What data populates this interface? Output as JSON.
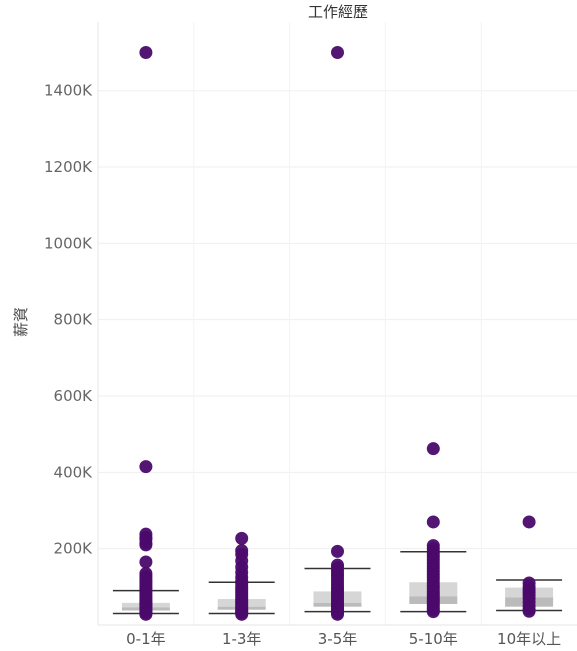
{
  "chart_data": {
    "type": "scatter",
    "title": "工作經歷",
    "xlabel": "",
    "ylabel": "薪資",
    "ylim": [
      0,
      1580000
    ],
    "yticks": [
      200000,
      400000,
      600000,
      800000,
      1000000,
      1200000,
      1400000
    ],
    "ytick_labels": [
      "200K",
      "400K",
      "600K",
      "800K",
      "1000K",
      "1200K",
      "1400K"
    ],
    "grid": true,
    "categories": [
      "0-1年",
      "1-3年",
      "3-5年",
      "5-10年",
      "10年以上"
    ],
    "point_color": "#4b0a6b",
    "box_color": "#d6d6d6",
    "box_median_band_color": "#bbbbbb",
    "whisker_color": "#333333",
    "series": [
      {
        "category": "0-1年",
        "points": [
          1500000,
          415000,
          238000,
          230000,
          225000,
          215000,
          210000,
          165000,
          135000,
          128000,
          122000,
          115000,
          110000,
          104000,
          98000,
          92000,
          86000,
          80000,
          75000,
          70000,
          65000,
          60000,
          56000,
          52000,
          48000,
          45000,
          42000,
          38000,
          35000,
          32000,
          28000
        ],
        "box": {
          "whisker_low": 30000,
          "q1": 38000,
          "median": 46000,
          "q3": 58000,
          "whisker_high": 90000
        }
      },
      {
        "category": "1-3年",
        "points": [
          227000,
          195000,
          185000,
          168000,
          152000,
          138000,
          125000,
          115000,
          108000,
          100000,
          94000,
          88000,
          82000,
          76000,
          70000,
          65000,
          60000,
          55000,
          50000,
          46000,
          42000,
          38000,
          35000,
          32000,
          28000
        ],
        "box": {
          "whisker_low": 30000,
          "q1": 40000,
          "median": 48000,
          "q3": 68000,
          "whisker_high": 112000
        }
      },
      {
        "category": "3-5年",
        "points": [
          1500000,
          193000,
          157000,
          150000,
          142000,
          135000,
          128000,
          120000,
          112000,
          105000,
          98000,
          92000,
          86000,
          80000,
          74000,
          68000,
          62000,
          57000,
          52000,
          48000,
          44000,
          40000,
          36000,
          32000,
          28000
        ],
        "box": {
          "whisker_low": 35000,
          "q1": 48000,
          "median": 58000,
          "q3": 88000,
          "whisker_high": 148000
        }
      },
      {
        "category": "5-10年",
        "points": [
          462000,
          270000,
          208000,
          200000,
          192000,
          185000,
          178000,
          170000,
          162000,
          155000,
          148000,
          140000,
          132000,
          125000,
          118000,
          110000,
          102000,
          95000,
          88000,
          82000,
          76000,
          70000,
          64000,
          58000,
          52000,
          46000,
          40000,
          35000
        ],
        "box": {
          "whisker_low": 35000,
          "q1": 55000,
          "median": 75000,
          "q3": 112000,
          "whisker_high": 192000
        }
      },
      {
        "category": "10年以上",
        "points": [
          270000,
          110000,
          100000,
          92000,
          85000,
          78000,
          70000,
          60000,
          50000,
          42000,
          36000
        ],
        "box": {
          "whisker_low": 38000,
          "q1": 48000,
          "median": 72000,
          "q3": 98000,
          "whisker_high": 118000
        }
      }
    ]
  }
}
